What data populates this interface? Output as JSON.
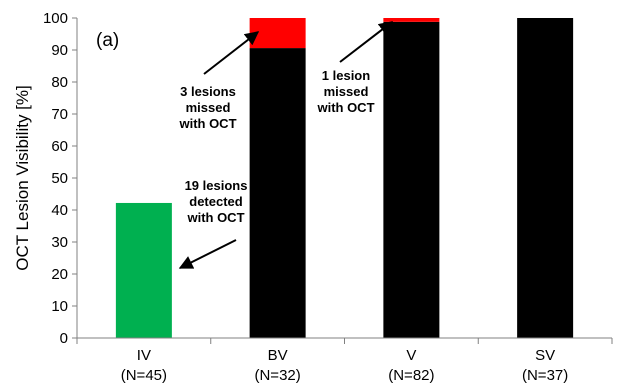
{
  "chart_data": {
    "type": "bar",
    "stacked": true,
    "panel_label": "(a)",
    "ylabel": "OCT Lesion Visibility [%]",
    "ylim": [
      0,
      100
    ],
    "yticks": [
      0,
      10,
      20,
      30,
      40,
      50,
      60,
      70,
      80,
      90,
      100
    ],
    "categories": [
      {
        "name": "IV",
        "n": "(N=45)"
      },
      {
        "name": "BV",
        "n": "(N=32)"
      },
      {
        "name": "V",
        "n": "(N=82)"
      },
      {
        "name": "SV",
        "n": "(N=37)"
      }
    ],
    "series": [
      {
        "values": [
          42.2,
          0,
          0,
          0
        ],
        "color": "#00b050"
      },
      {
        "values": [
          0,
          90.6,
          98.8,
          100
        ],
        "color": "#000000"
      },
      {
        "values": [
          0,
          9.4,
          1.2,
          0
        ],
        "color": "#ff0000"
      }
    ],
    "grid": false,
    "annotations": [
      {
        "lines": [
          "19 lesions",
          "detected",
          "with OCT"
        ],
        "category": "IV"
      },
      {
        "lines": [
          "3 lesions",
          "missed",
          "with OCT"
        ],
        "category": "BV"
      },
      {
        "lines": [
          "1 lesion",
          "missed",
          "with OCT"
        ],
        "category": "V"
      }
    ]
  }
}
